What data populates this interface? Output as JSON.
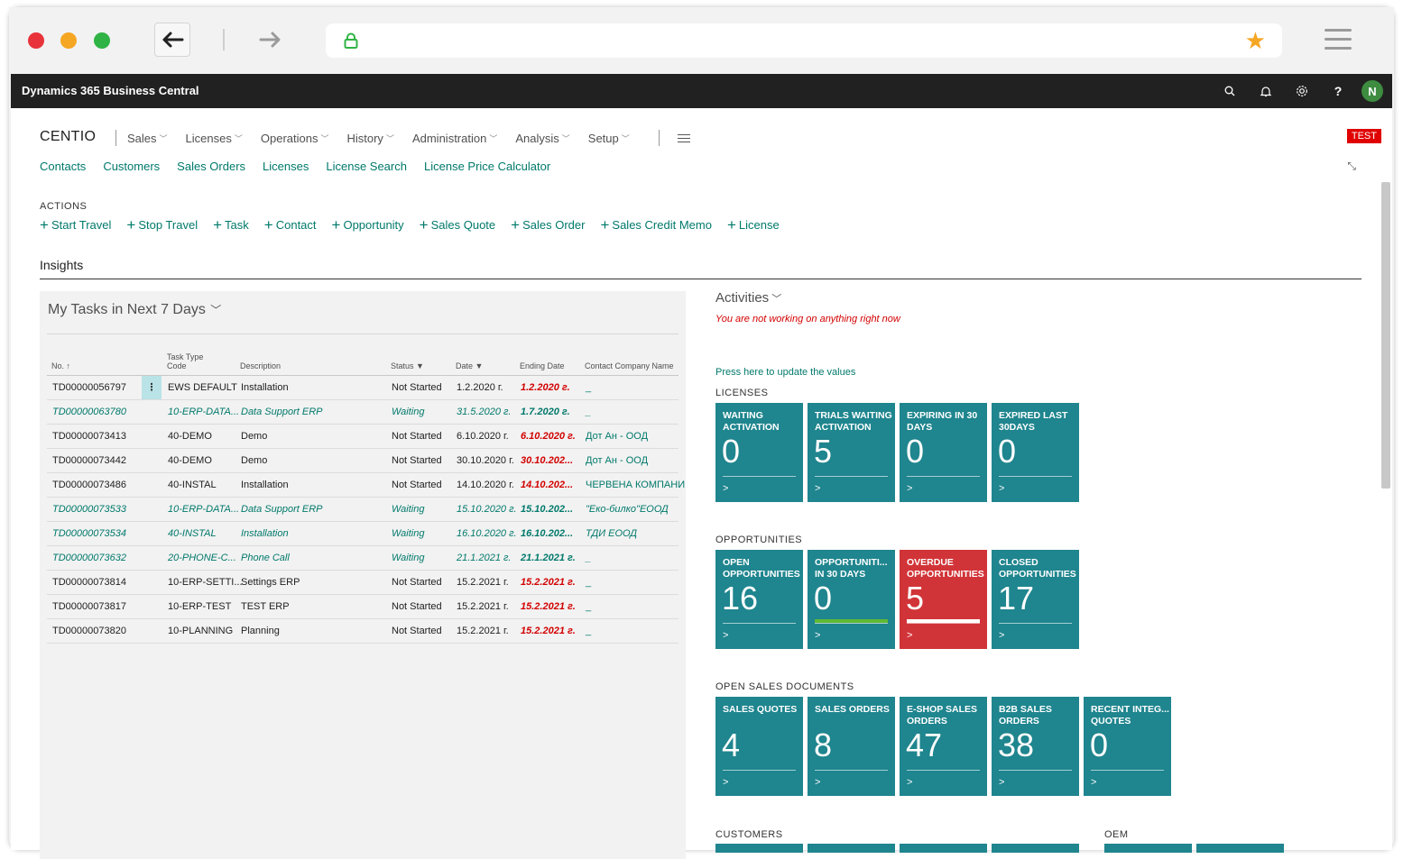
{
  "browser": {
    "bookmark_icon": "star-icon"
  },
  "appbar": {
    "title": "Dynamics 365 Business Central",
    "user_initial": "N"
  },
  "company": "CENTIO",
  "menu": [
    "Sales",
    "Licenses",
    "Operations",
    "History",
    "Administration",
    "Analysis",
    "Setup"
  ],
  "env_badge": "TEST",
  "quicklinks": [
    "Contacts",
    "Customers",
    "Sales Orders",
    "Licenses",
    "License Search",
    "License Price Calculator"
  ],
  "actions_label": "ACTIONS",
  "actions": [
    "Start Travel",
    "Stop Travel",
    "Task",
    "Contact",
    "Opportunity",
    "Sales Quote",
    "Sales Order",
    "Sales Credit Memo",
    "License"
  ],
  "insights_title": "Insights",
  "tasks": {
    "title": "My Tasks in Next 7 Days",
    "columns": {
      "no": "No. ↑",
      "task_type_line1": "Task Type",
      "task_type_line2": "Code",
      "description": "Description",
      "status": "Status",
      "date": "Date",
      "ending_date": "Ending Date",
      "contact_company": "Contact Company Name"
    },
    "rows": [
      {
        "no": "TD00000056797",
        "type": "EWS DEFAULT",
        "desc": "Installation",
        "status": "Not Started",
        "date": "1.2.2020 г.",
        "end": "1.2.2020 г.",
        "company": "_",
        "style": "normal"
      },
      {
        "no": "TD00000063780",
        "type": "10-ERP-DATA...",
        "desc": "Data Support ERP",
        "status": "Waiting",
        "date": "31.5.2020 г.",
        "end": "1.7.2020 г.",
        "company": "_",
        "style": "italic"
      },
      {
        "no": "TD00000073413",
        "type": "40-DEMO",
        "desc": "Demo",
        "status": "Not Started",
        "date": "6.10.2020 г.",
        "end": "6.10.2020 г.",
        "company": "Дот Ан - ООД",
        "style": "normal"
      },
      {
        "no": "TD00000073442",
        "type": "40-DEMO",
        "desc": "Demo",
        "status": "Not Started",
        "date": "30.10.2020 г.",
        "end": "30.10.202...",
        "company": "Дот Ан - ООД",
        "style": "normal"
      },
      {
        "no": "TD00000073486",
        "type": "40-INSTAL",
        "desc": "Installation",
        "status": "Not Started",
        "date": "14.10.2020 г.",
        "end": "14.10.202...",
        "company": "ЧЕРВЕНА КОМПАНИ",
        "style": "normal"
      },
      {
        "no": "TD00000073533",
        "type": "10-ERP-DATA...",
        "desc": "Data Support ERP",
        "status": "Waiting",
        "date": "15.10.2020 г.",
        "end": "15.10.202...",
        "company": "\"Еко-билко\"ЕООД",
        "style": "italic"
      },
      {
        "no": "TD00000073534",
        "type": "40-INSTAL",
        "desc": "Installation",
        "status": "Waiting",
        "date": "16.10.2020 г.",
        "end": "16.10.202...",
        "company": "ТДИ ЕООД",
        "style": "italic"
      },
      {
        "no": "TD00000073632",
        "type": "20-PHONE-C...",
        "desc": "Phone Call",
        "status": "Waiting",
        "date": "21.1.2021 г.",
        "end": "21.1.2021 г.",
        "company": "_",
        "style": "italic"
      },
      {
        "no": "TD00000073814",
        "type": "10-ERP-SETTI...",
        "desc": "Settings ERP",
        "status": "Not Started",
        "date": "15.2.2021 г.",
        "end": "15.2.2021 г.",
        "company": "_",
        "style": "normal"
      },
      {
        "no": "TD00000073817",
        "type": "10-ERP-TEST",
        "desc": "TEST ERP",
        "status": "Not Started",
        "date": "15.2.2021 г.",
        "end": "15.2.2021 г.",
        "company": "_",
        "style": "normal"
      },
      {
        "no": "TD00000073820",
        "type": "10-PLANNING",
        "desc": "Planning",
        "status": "Not Started",
        "date": "15.2.2021 г.",
        "end": "15.2.2021 г.",
        "company": "_",
        "style": "normal"
      }
    ]
  },
  "activities": {
    "title": "Activities",
    "note": "You are not working on anything right now",
    "update_link": "Press here to update the values",
    "sections": [
      {
        "label": "LICENSES",
        "tiles": [
          {
            "l1": "WAITING",
            "l2": "ACTIVATION",
            "value": "0",
            "color": "teal"
          },
          {
            "l1": "TRIALS WAITING",
            "l2": "ACTIVATION",
            "value": "5",
            "color": "teal"
          },
          {
            "l1": "EXPIRING IN 30",
            "l2": "DAYS",
            "value": "0",
            "color": "teal"
          },
          {
            "l1": "EXPIRED LAST",
            "l2": "30DAYS",
            "value": "0",
            "color": "teal"
          }
        ]
      },
      {
        "label": "OPPORTUNITIES",
        "tiles": [
          {
            "l1": "OPEN",
            "l2": "OPPORTUNITIES",
            "value": "16",
            "color": "teal"
          },
          {
            "l1": "OPPORTUNITI...",
            "l2": "IN 30 DAYS",
            "value": "0",
            "color": "teal",
            "bar": "#5fb832"
          },
          {
            "l1": "OVERDUE",
            "l2": "OPPORTUNITIES",
            "value": "5",
            "color": "red",
            "bar": "#ffffff"
          },
          {
            "l1": "CLOSED",
            "l2": "OPPORTUNITIES",
            "value": "17",
            "color": "teal"
          }
        ]
      },
      {
        "label": "OPEN SALES DOCUMENTS",
        "tiles": [
          {
            "l1": "SALES QUOTES",
            "l2": "",
            "value": "4",
            "color": "teal"
          },
          {
            "l1": "SALES ORDERS",
            "l2": "",
            "value": "8",
            "color": "teal"
          },
          {
            "l1": "E-SHOP SALES",
            "l2": "ORDERS",
            "value": "47",
            "color": "teal"
          },
          {
            "l1": "B2B SALES",
            "l2": "ORDERS",
            "value": "38",
            "color": "teal"
          },
          {
            "l1": "RECENT INTEG...",
            "l2": "QUOTES",
            "value": "0",
            "color": "teal"
          }
        ]
      }
    ],
    "customers_label": "CUSTOMERS",
    "oem_label": "OEM"
  },
  "colors": {
    "accent": "#00796b",
    "tile": "#1f858e",
    "tile_alert": "#d13438",
    "appbar": "#212121"
  }
}
